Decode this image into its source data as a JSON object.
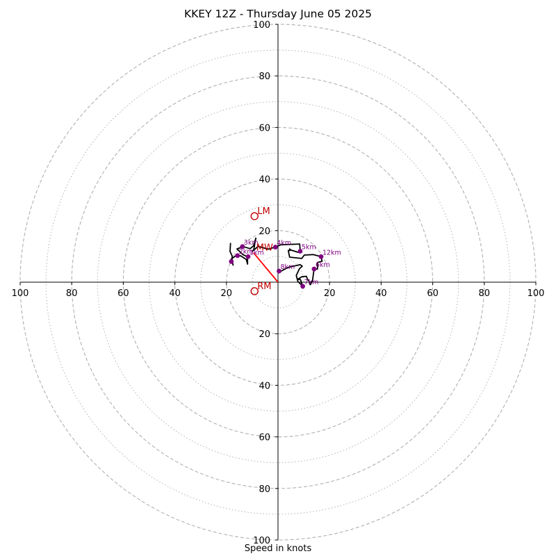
{
  "chart_data": {
    "type": "scatter",
    "title": "KKEY 12Z - Thursday June 05 2025",
    "xlabel": "Speed in knots",
    "ylabel": "",
    "xlim": [
      -100,
      100
    ],
    "ylim": [
      -100,
      100
    ],
    "rings_major": [
      20,
      40,
      60,
      80,
      100
    ],
    "rings_minor": [
      10,
      30,
      50,
      70,
      90
    ],
    "ticks": {
      "x": [
        {
          "value": -100,
          "label": "100"
        },
        {
          "value": -80,
          "label": "80"
        },
        {
          "value": -60,
          "label": "60"
        },
        {
          "value": -40,
          "label": "40"
        },
        {
          "value": -20,
          "label": "20"
        },
        {
          "value": 20,
          "label": "20"
        },
        {
          "value": 40,
          "label": "40"
        },
        {
          "value": 60,
          "label": "60"
        },
        {
          "value": 80,
          "label": "80"
        },
        {
          "value": 100,
          "label": "100"
        }
      ],
      "y": [
        {
          "value": 100,
          "label": "100"
        },
        {
          "value": 80,
          "label": "80"
        },
        {
          "value": 60,
          "label": "60"
        },
        {
          "value": 40,
          "label": "40"
        },
        {
          "value": 20,
          "label": "20"
        },
        {
          "value": -20,
          "label": "20"
        },
        {
          "value": -40,
          "label": "40"
        },
        {
          "value": -60,
          "label": "60"
        },
        {
          "value": -80,
          "label": "80"
        },
        {
          "value": -100,
          "label": "100"
        }
      ]
    },
    "hodograph": [
      [
        -18.4,
        15.2
      ],
      [
        -18.6,
        11.9
      ],
      [
        -17.8,
        10.2
      ],
      [
        -17.8,
        8.3
      ],
      [
        -17.4,
        6.6
      ],
      [
        -18.1,
        9.0
      ],
      [
        -16.7,
        10.0
      ],
      [
        -15.7,
        10.3
      ],
      [
        -14.4,
        10.2
      ],
      [
        -12.3,
        8.8
      ],
      [
        -11.8,
        7.0
      ],
      [
        -11.8,
        9.8
      ],
      [
        -13.6,
        10.7
      ],
      [
        -15.9,
        12.9
      ],
      [
        -13.5,
        13.8
      ],
      [
        -10.8,
        13.0
      ],
      [
        -9.5,
        14.1
      ],
      [
        -8.6,
        17.1
      ],
      [
        -9.4,
        12.6
      ],
      [
        -9.9,
        12.0
      ],
      [
        -7.7,
        13.9
      ],
      [
        -3.8,
        12.8
      ],
      [
        -1.0,
        13.6
      ],
      [
        1.1,
        14.5
      ],
      [
        8.4,
        14.8
      ],
      [
        8.6,
        12.4
      ],
      [
        7.8,
        11.6
      ],
      [
        4.9,
        12.5
      ],
      [
        4.5,
        12.9
      ],
      [
        4.7,
        12.3
      ],
      [
        4.0,
        12.3
      ],
      [
        4.5,
        9.7
      ],
      [
        9.2,
        9.2
      ],
      [
        10.2,
        10.5
      ],
      [
        13.6,
        10.7
      ],
      [
        16.7,
        9.9
      ],
      [
        17.1,
        8.1
      ],
      [
        15.3,
        7.6
      ],
      [
        15.3,
        5.1
      ],
      [
        14.0,
        5.1
      ],
      [
        13.4,
        0.7
      ],
      [
        12.5,
        -1.0
      ],
      [
        12.0,
        0.5
      ],
      [
        11.5,
        1.0
      ],
      [
        11.0,
        2.3
      ],
      [
        9.3,
        2.1
      ],
      [
        7.6,
        1.1
      ],
      [
        8.7,
        1.0
      ],
      [
        9.6,
        -1.6
      ],
      [
        7.7,
        0.3
      ],
      [
        7.1,
        2.6
      ],
      [
        8.3,
        5.2
      ],
      [
        9.4,
        6.2
      ],
      [
        8.6,
        6.8
      ],
      [
        3.8,
        5.7
      ],
      [
        0.5,
        3.9
      ],
      [
        0.4,
        4.3
      ]
    ],
    "height_markers": [
      {
        "label": "1km",
        "x": -11.6,
        "y": 9.9
      },
      {
        "label": "2km",
        "x": -15.7,
        "y": 10.3
      },
      {
        "label": "3km",
        "x": -13.8,
        "y": 13.8
      },
      {
        "label": "4km",
        "x": -1.0,
        "y": 13.6
      },
      {
        "label": "5km",
        "x": 8.6,
        "y": 12.0
      },
      {
        "label": "6km",
        "x": 14.0,
        "y": 5.1
      },
      {
        "label": "7km",
        "x": 9.6,
        "y": -1.6
      },
      {
        "label": "8km",
        "x": 0.4,
        "y": 4.3
      },
      {
        "label": "12km",
        "x": 16.7,
        "y": 9.9
      },
      {
        "label": "",
        "x": -18.1,
        "y": 8.0
      }
    ],
    "storm_motion": [
      {
        "label": "LM",
        "x": -9.1,
        "y": 25.6
      },
      {
        "label": "MW",
        "x": -9.5,
        "y": 11.4
      },
      {
        "label": "RM",
        "x": -9.1,
        "y": -3.5
      }
    ],
    "mean_wind_vector": {
      "from": [
        0,
        0
      ],
      "to": [
        -9.5,
        11.4
      ]
    },
    "colors": {
      "hodograph": "#000000",
      "markers": "#800080",
      "storm_motion": "#c00000",
      "vector": "#ff0000",
      "grid": "#b0b0b0",
      "axes": "#000000"
    }
  }
}
